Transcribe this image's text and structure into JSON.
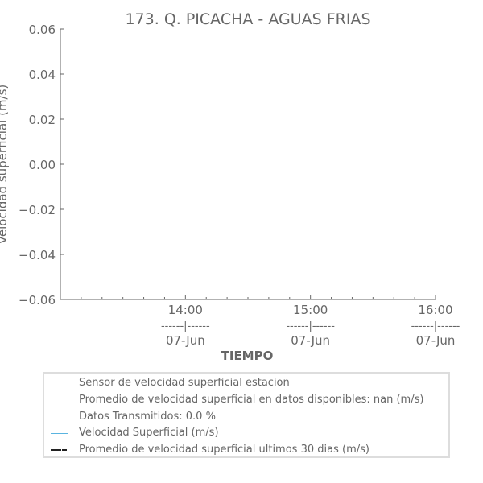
{
  "chart_data": {
    "type": "line",
    "title": "173. Q. PICACHA - AGUAS FRIAS",
    "xlabel": "TIEMPO",
    "ylabel": "Velocidad superficial (m/s)",
    "ylim": [
      -0.06,
      0.06
    ],
    "yticks": [
      "0.06",
      "0.04",
      "0.02",
      "0.00",
      "−0.02",
      "−0.04",
      "−0.06"
    ],
    "xticks": [
      {
        "time": "14:00",
        "sep": "------|------",
        "date": "07-Jun"
      },
      {
        "time": "15:00",
        "sep": "------|------",
        "date": "07-Jun"
      },
      {
        "time": "16:00",
        "sep": "------|------",
        "date": "07-Jun"
      }
    ],
    "series": [
      {
        "name": "Velocidad Superficial (m/s)",
        "values": [],
        "color": "#5ab4e0",
        "style": "solid"
      },
      {
        "name": "Promedio de velocidad superficial ultimos 30 dias (m/s)",
        "values": [],
        "color": "#222222",
        "style": "dashed"
      }
    ],
    "legend": {
      "placement": "bottom",
      "info_lines": [
        "Sensor de velocidad superficial estacion",
        "Promedio de velocidad superficial en datos disponibles: nan (m/s)",
        "Datos Transmitidos: 0.0 %"
      ]
    },
    "grid": false
  },
  "colors": {
    "text": "#666666",
    "axis": "#666666",
    "legend_border": "#dddddd"
  }
}
